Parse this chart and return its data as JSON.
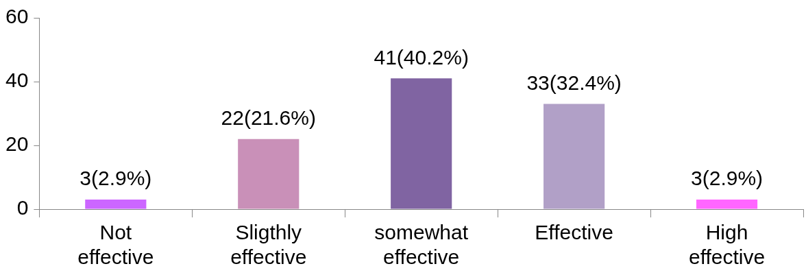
{
  "chart_data": {
    "type": "bar",
    "categories": [
      "Not effective",
      "Sligthly effective",
      "somewhat effective",
      "Effective",
      "High effective"
    ],
    "values": [
      3,
      22,
      41,
      33,
      3
    ],
    "colors": [
      "#cc66ff",
      "#c990b8",
      "#8064a2",
      "#b1a0c7",
      "#ff66ff"
    ],
    "value_labels": [
      "3(2.9%)",
      "22(21.6%)",
      "41(40.2%)",
      "33(32.4%)",
      "3(2.9%)"
    ],
    "ylim": [
      0,
      60
    ],
    "yticks": [
      0,
      20,
      40,
      60
    ],
    "grid": false,
    "legend": false
  }
}
